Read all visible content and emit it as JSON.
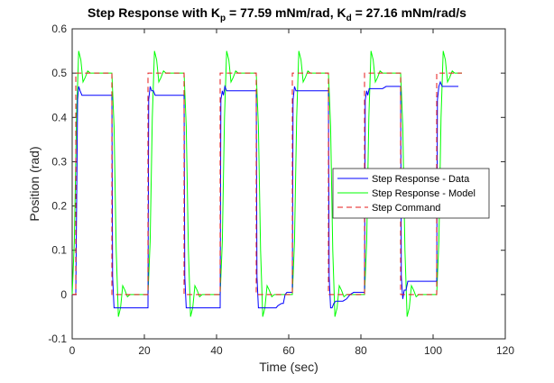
{
  "chart_data": {
    "type": "line",
    "title": {
      "prefix": "Step Response with K",
      "sub1": "p",
      "middle": " = 77.59 mNm/rad, K",
      "sub2": "d",
      "suffix": " = 27.16 mNm/rad/s"
    },
    "xlabel": "Time (sec)",
    "ylabel": "Position (rad)",
    "xlim": [
      0,
      120
    ],
    "ylim": [
      -0.1,
      0.6
    ],
    "xticks": [
      0,
      20,
      40,
      60,
      80,
      100,
      120
    ],
    "yticks": [
      -0.1,
      0,
      0.1,
      0.2,
      0.3,
      0.4,
      0.5,
      0.6
    ],
    "xtick_labels": [
      "0",
      "20",
      "40",
      "60",
      "80",
      "100",
      "120"
    ],
    "ytick_labels": [
      "-0.1",
      "0",
      "0.1",
      "0.2",
      "0.3",
      "0.4",
      "0.5",
      "0.6"
    ],
    "grid": false,
    "legend_position": "center-right",
    "series": [
      {
        "name": "Step Response - Data",
        "color": "#0000ff",
        "style": "solid",
        "x": [
          0,
          1,
          1.5,
          1.8,
          2.2,
          2.7,
          3.2,
          8,
          11,
          11.2,
          11.6,
          12,
          12.4,
          13,
          21,
          21.2,
          21.6,
          22,
          22.5,
          23,
          31,
          31.2,
          31.6,
          32,
          32.5,
          33,
          41,
          41.2,
          41.6,
          41.9,
          42.3,
          42.8,
          51,
          51.2,
          51.6,
          52,
          52.5,
          53,
          56.5,
          57,
          58,
          58.5,
          59,
          59.5,
          60,
          61,
          61.2,
          61.6,
          62,
          62.5,
          63,
          71,
          71.2,
          71.6,
          72,
          72.5,
          73,
          75,
          76,
          77,
          78,
          79,
          80,
          81,
          81.2,
          81.6,
          81.9,
          82.3,
          82.8,
          85,
          86,
          87,
          87.5,
          88,
          89,
          90,
          91,
          91.2,
          91.6,
          92,
          92.5,
          93,
          96,
          97,
          98,
          99,
          100,
          101,
          101.2,
          101.6,
          102,
          102.5,
          103,
          104,
          107
        ],
        "y": [
          0,
          0,
          0.44,
          0.47,
          0.46,
          0.45,
          0.45,
          0.45,
          0.45,
          0.04,
          -0.03,
          -0.03,
          -0.03,
          -0.03,
          -0.03,
          0.44,
          0.47,
          0.46,
          0.46,
          0.45,
          0.45,
          0.04,
          -0.03,
          -0.03,
          -0.03,
          -0.03,
          -0.03,
          0.44,
          0.46,
          0.45,
          0.47,
          0.46,
          0.46,
          0.04,
          -0.03,
          -0.03,
          -0.03,
          -0.03,
          -0.03,
          -0.025,
          -0.02,
          -0.02,
          0,
          0.005,
          0.005,
          0.005,
          0.44,
          0.47,
          0.46,
          0.46,
          0.46,
          0.46,
          0.04,
          -0.03,
          -0.03,
          -0.02,
          -0.015,
          -0.015,
          -0.01,
          0,
          0.005,
          0.005,
          0.005,
          0.005,
          0.44,
          0.46,
          0.45,
          0.465,
          0.465,
          0.465,
          0.465,
          0.47,
          0.47,
          0.47,
          0.47,
          0.47,
          0.47,
          0.04,
          -0.01,
          0.01,
          0.01,
          0.03,
          0.03,
          0.03,
          0.03,
          0.03,
          0.03,
          0.03,
          0.44,
          0.47,
          0.48,
          0.47,
          0.47,
          0.47,
          0.47
        ]
      },
      {
        "name": "Step Response - Model",
        "color": "#00ff00",
        "style": "solid",
        "x": [
          0,
          0.6,
          1.2,
          1.8,
          2.4,
          3,
          3.6,
          4.3,
          5,
          6,
          11,
          11.6,
          12.2,
          12.8,
          13.4,
          14,
          14.6,
          15.3,
          16,
          17,
          21,
          21.6,
          22.2,
          22.8,
          23.4,
          24,
          24.6,
          25.3,
          26,
          27,
          31,
          31.6,
          32.2,
          32.8,
          33.4,
          34,
          34.6,
          35.3,
          36,
          37,
          41,
          41.6,
          42.2,
          42.8,
          43.4,
          44,
          44.6,
          45.3,
          46,
          47,
          51,
          51.6,
          52.2,
          52.8,
          53.4,
          54,
          54.6,
          55.3,
          56,
          57,
          61,
          61.6,
          62.2,
          62.8,
          63.4,
          64,
          64.6,
          65.3,
          66,
          67,
          71,
          71.6,
          72.2,
          72.8,
          73.4,
          74,
          74.6,
          75.3,
          76,
          77,
          81,
          81.6,
          82.2,
          82.8,
          83.4,
          84,
          84.6,
          85.3,
          86,
          87,
          91,
          91.6,
          92.2,
          92.8,
          93.4,
          94,
          94.6,
          95.3,
          96,
          97,
          101,
          101.6,
          102.2,
          102.8,
          103.4,
          104,
          104.6,
          105.3,
          106,
          107,
          108
        ],
        "y": [
          0,
          0.12,
          0.4,
          0.55,
          0.53,
          0.48,
          0.49,
          0.505,
          0.5,
          0.5,
          0.5,
          0.38,
          0.1,
          -0.05,
          -0.03,
          0.02,
          0.01,
          -0.005,
          0,
          0,
          0,
          0.12,
          0.4,
          0.55,
          0.53,
          0.48,
          0.49,
          0.505,
          0.5,
          0.5,
          0.5,
          0.38,
          0.1,
          -0.05,
          -0.03,
          0.02,
          0.01,
          -0.005,
          0,
          0,
          0,
          0.12,
          0.4,
          0.55,
          0.53,
          0.48,
          0.49,
          0.505,
          0.5,
          0.5,
          0.5,
          0.38,
          0.1,
          -0.05,
          -0.03,
          0.02,
          0.01,
          -0.005,
          0,
          0,
          0,
          0.12,
          0.4,
          0.55,
          0.53,
          0.48,
          0.49,
          0.505,
          0.5,
          0.5,
          0.5,
          0.38,
          0.1,
          -0.05,
          -0.03,
          0.02,
          0.01,
          -0.005,
          0,
          0,
          0,
          0.12,
          0.4,
          0.55,
          0.53,
          0.48,
          0.49,
          0.505,
          0.5,
          0.5,
          0.5,
          0.38,
          0.1,
          -0.05,
          -0.03,
          0.02,
          0.01,
          -0.005,
          0,
          0,
          0,
          0.12,
          0.4,
          0.55,
          0.53,
          0.48,
          0.49,
          0.505,
          0.5,
          0.5,
          0.5
        ]
      },
      {
        "name": "Step Command",
        "color": "#e51a1a",
        "style": "dashed",
        "x": [
          0,
          1,
          1,
          11,
          11,
          21,
          21,
          31,
          31,
          41,
          41,
          51,
          51,
          61,
          61,
          71,
          71,
          81,
          81,
          91,
          91,
          101,
          101,
          108
        ],
        "y": [
          0,
          0,
          0.5,
          0.5,
          0,
          0,
          0.5,
          0.5,
          0,
          0,
          0.5,
          0.5,
          0,
          0,
          0.5,
          0.5,
          0,
          0,
          0.5,
          0.5,
          0,
          0,
          0.5,
          0.5
        ]
      }
    ]
  }
}
